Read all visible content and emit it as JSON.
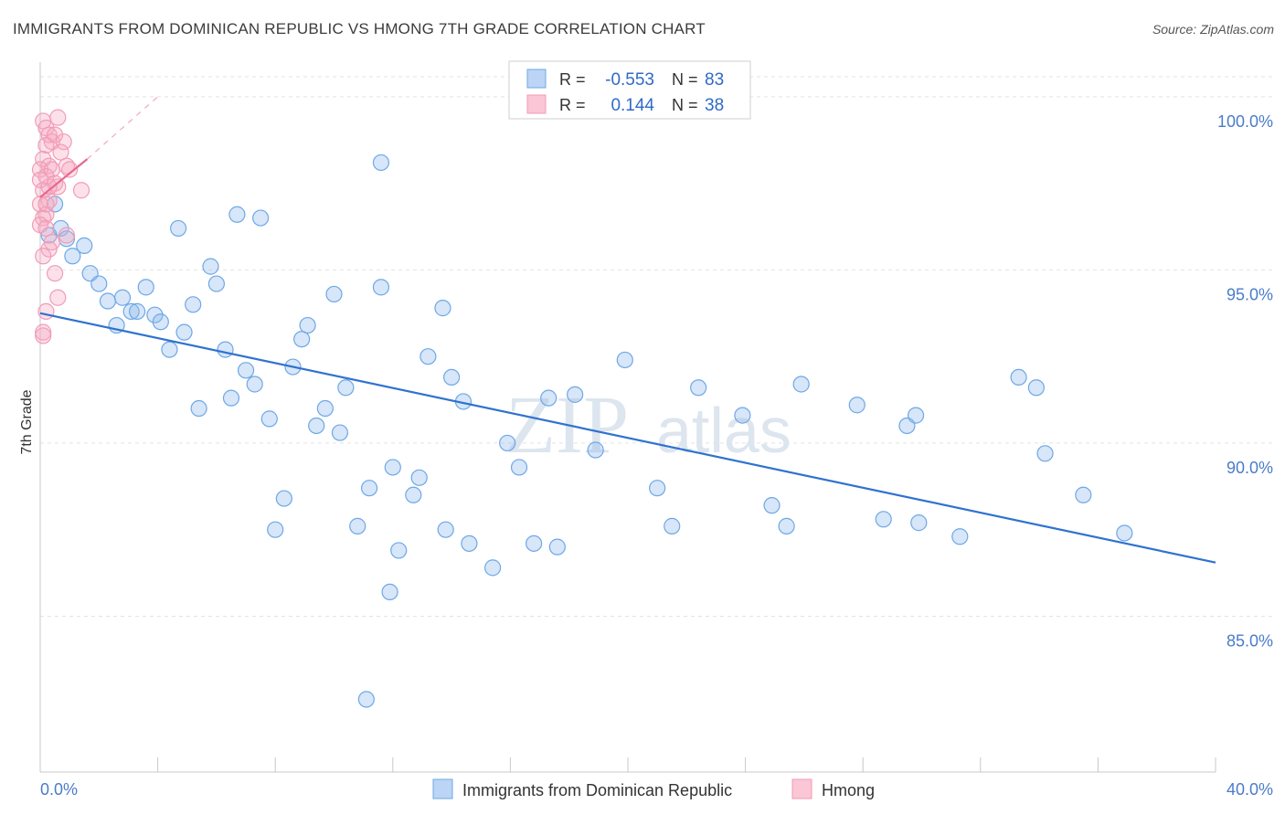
{
  "title": "IMMIGRANTS FROM DOMINICAN REPUBLIC VS HMONG 7TH GRADE CORRELATION CHART",
  "source": "Source: ZipAtlas.com",
  "watermark": {
    "zip": "ZIP",
    "atlas": "atlas"
  },
  "chart_data": {
    "type": "scatter",
    "ylabel": "7th Grade",
    "xlim": [
      0,
      40
    ],
    "ylim": [
      80.5,
      101
    ],
    "x_tick_labels": [
      "0.0%",
      "40.0%"
    ],
    "y_ticks": [
      85,
      90,
      95,
      100
    ],
    "y_tick_labels": [
      "85.0%",
      "90.0%",
      "95.0%",
      "100.0%"
    ],
    "grid": true,
    "legend_position": "top-center",
    "stats": [
      {
        "r_label": "R =",
        "r": "-0.553",
        "n_label": "N =",
        "n": "83"
      },
      {
        "r_label": "R =",
        "r": "0.144",
        "n_label": "N =",
        "n": "38"
      }
    ],
    "series": [
      {
        "name": "Immigrants from Dominican Republic",
        "color": "#6ea8e6",
        "trend": {
          "x": [
            0,
            40
          ],
          "y": [
            93.75,
            86.55
          ]
        },
        "points": [
          [
            0.3,
            96.0
          ],
          [
            0.5,
            96.9
          ],
          [
            0.7,
            96.2
          ],
          [
            0.9,
            95.9
          ],
          [
            1.1,
            95.4
          ],
          [
            1.5,
            95.7
          ],
          [
            1.7,
            94.9
          ],
          [
            2.0,
            94.6
          ],
          [
            2.3,
            94.1
          ],
          [
            2.6,
            93.4
          ],
          [
            2.8,
            94.2
          ],
          [
            3.1,
            93.8
          ],
          [
            3.3,
            93.8
          ],
          [
            3.6,
            94.5
          ],
          [
            3.9,
            93.7
          ],
          [
            4.1,
            93.5
          ],
          [
            4.4,
            92.7
          ],
          [
            4.7,
            96.2
          ],
          [
            4.9,
            93.2
          ],
          [
            5.2,
            94.0
          ],
          [
            5.4,
            91.0
          ],
          [
            5.8,
            95.1
          ],
          [
            6.0,
            94.6
          ],
          [
            6.3,
            92.7
          ],
          [
            6.5,
            91.3
          ],
          [
            6.7,
            96.6
          ],
          [
            7.0,
            92.1
          ],
          [
            7.3,
            91.7
          ],
          [
            7.5,
            96.5
          ],
          [
            7.8,
            90.7
          ],
          [
            8.0,
            87.5
          ],
          [
            8.3,
            88.4
          ],
          [
            8.6,
            92.2
          ],
          [
            8.9,
            93.0
          ],
          [
            9.1,
            93.4
          ],
          [
            9.4,
            90.5
          ],
          [
            9.7,
            91.0
          ],
          [
            10.0,
            94.3
          ],
          [
            10.2,
            90.3
          ],
          [
            10.4,
            91.6
          ],
          [
            10.8,
            87.6
          ],
          [
            11.2,
            88.7
          ],
          [
            11.1,
            82.6
          ],
          [
            11.6,
            94.5
          ],
          [
            11.6,
            98.1
          ],
          [
            11.9,
            85.7
          ],
          [
            12.2,
            86.9
          ],
          [
            12.0,
            89.3
          ],
          [
            12.7,
            88.5
          ],
          [
            12.9,
            89.0
          ],
          [
            13.2,
            92.5
          ],
          [
            13.7,
            93.9
          ],
          [
            13.8,
            87.5
          ],
          [
            14.0,
            91.9
          ],
          [
            14.4,
            91.2
          ],
          [
            14.6,
            87.1
          ],
          [
            15.4,
            86.4
          ],
          [
            15.9,
            90.0
          ],
          [
            16.3,
            89.3
          ],
          [
            16.8,
            87.1
          ],
          [
            17.3,
            91.3
          ],
          [
            17.6,
            87.0
          ],
          [
            18.2,
            91.4
          ],
          [
            18.9,
            89.8
          ],
          [
            19.9,
            92.4
          ],
          [
            21.0,
            88.7
          ],
          [
            21.5,
            87.6
          ],
          [
            22.4,
            91.6
          ],
          [
            23.9,
            90.8
          ],
          [
            24.9,
            88.2
          ],
          [
            25.4,
            87.6
          ],
          [
            25.9,
            91.7
          ],
          [
            27.8,
            91.1
          ],
          [
            28.7,
            87.8
          ],
          [
            29.5,
            90.5
          ],
          [
            29.8,
            90.8
          ],
          [
            29.9,
            87.7
          ],
          [
            31.3,
            87.3
          ],
          [
            33.3,
            91.9
          ],
          [
            33.9,
            91.6
          ],
          [
            34.2,
            89.7
          ],
          [
            35.5,
            88.5
          ],
          [
            36.9,
            87.4
          ]
        ]
      },
      {
        "name": "Hmong",
        "color": "#f29bb6",
        "trend": {
          "x": [
            0,
            1.6
          ],
          "y": [
            97.1,
            98.2
          ]
        },
        "points": [
          [
            0.1,
            99.3
          ],
          [
            0.2,
            99.1
          ],
          [
            0.3,
            98.9
          ],
          [
            0.4,
            98.7
          ],
          [
            0.6,
            99.4
          ],
          [
            0.5,
            98.9
          ],
          [
            0.8,
            98.7
          ],
          [
            0.2,
            98.6
          ],
          [
            0.7,
            98.4
          ],
          [
            0.1,
            98.2
          ],
          [
            0.3,
            98.0
          ],
          [
            0.0,
            97.9
          ],
          [
            0.4,
            97.9
          ],
          [
            0.9,
            98.0
          ],
          [
            1.0,
            97.9
          ],
          [
            0.2,
            97.7
          ],
          [
            0.5,
            97.5
          ],
          [
            0.6,
            97.4
          ],
          [
            1.4,
            97.3
          ],
          [
            0.1,
            97.3
          ],
          [
            0.3,
            97.0
          ],
          [
            0.0,
            96.9
          ],
          [
            0.2,
            96.6
          ],
          [
            0.1,
            96.5
          ],
          [
            0.0,
            96.3
          ],
          [
            0.2,
            96.2
          ],
          [
            0.9,
            96.0
          ],
          [
            0.4,
            95.8
          ],
          [
            0.3,
            95.6
          ],
          [
            0.1,
            95.4
          ],
          [
            0.5,
            94.9
          ],
          [
            0.6,
            94.2
          ],
          [
            0.2,
            93.8
          ],
          [
            0.1,
            93.2
          ],
          [
            0.1,
            93.1
          ],
          [
            0.3,
            97.4
          ],
          [
            0.0,
            97.6
          ],
          [
            0.2,
            96.9
          ]
        ]
      }
    ],
    "dash_extension": {
      "x": [
        1.6,
        4.0
      ],
      "y": [
        98.2,
        100.0
      ]
    }
  }
}
